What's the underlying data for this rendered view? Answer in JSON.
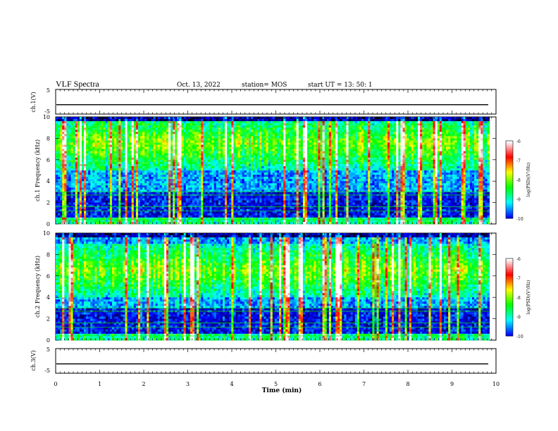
{
  "header": {
    "title": "VLF Spectra",
    "date": "Oct. 13, 2022",
    "station": "station= MOS",
    "start": "start  UT =   13: 50: 1"
  },
  "chart_data": [
    {
      "type": "line",
      "ylabel": "ch.1(V)",
      "yticks": [
        "5",
        "-5"
      ],
      "ylim": [
        -5,
        5
      ],
      "xlim": [
        0,
        10
      ],
      "baseline_v": -1.2,
      "xlabel": ""
    },
    {
      "type": "heatmap",
      "ylabel": "ch.1  Frequency  (kHz)",
      "ylim": [
        0,
        10
      ],
      "yticks": [
        "0",
        "2",
        "4",
        "6",
        "8",
        "10"
      ],
      "xlim": [
        0,
        9.85
      ],
      "dominant_band_khz": [
        5,
        10
      ],
      "colorbar": {
        "label": "log(PSD)(V²/Hz)",
        "range": [
          -10,
          -6
        ],
        "ticks": [
          "-6",
          "-7",
          "-8",
          "-9",
          "-10"
        ]
      }
    },
    {
      "type": "heatmap",
      "ylabel": "ch.2  Frequency  (kHz)",
      "ylim": [
        0,
        10
      ],
      "yticks": [
        "0",
        "2",
        "4",
        "6",
        "8",
        "10"
      ],
      "xlim": [
        0,
        9.85
      ],
      "dominant_band_khz": [
        4,
        9
      ],
      "colorbar": {
        "label": "log(PSD)(V²/Hz)",
        "range": [
          -10,
          -6
        ],
        "ticks": [
          "-6",
          "-7",
          "-8",
          "-9",
          "-10"
        ]
      }
    },
    {
      "type": "line",
      "ylabel": "ch.3(V)",
      "yticks": [
        "5",
        "-5"
      ],
      "ylim": [
        -5,
        5
      ],
      "xlim": [
        0,
        10
      ],
      "baseline_v": -1.2,
      "xlabel": ""
    }
  ],
  "x_axis": {
    "label": "Time  (min)",
    "ticks": [
      "0",
      "1",
      "2",
      "3",
      "4",
      "5",
      "6",
      "7",
      "8",
      "9",
      "10"
    ],
    "range": [
      0,
      10
    ]
  },
  "colors": {
    "colormap": [
      "#000000",
      "#0000ff",
      "#00ffff",
      "#00ff00",
      "#ffff00",
      "#ff0000",
      "#ffffff"
    ]
  }
}
